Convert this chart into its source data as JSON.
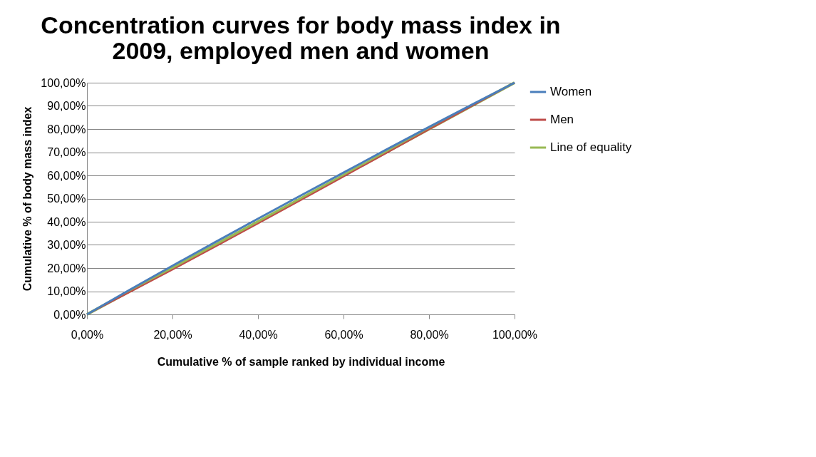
{
  "chart_data": {
    "type": "line",
    "title": [
      "Concentration curves for body mass index in",
      "2009, employed men and women"
    ],
    "xlabel": "Cumulative % of sample ranked by individual income",
    "ylabel": "Cumulative % of body mass index",
    "x": [
      0,
      10,
      20,
      30,
      40,
      50,
      60,
      70,
      80,
      90,
      100
    ],
    "series": [
      {
        "name": "Women",
        "color": "#4a7ebb",
        "values": [
          0,
          10.6,
          21.0,
          31.2,
          41.3,
          51.3,
          61.2,
          71.1,
          80.9,
          90.5,
          100
        ]
      },
      {
        "name": "Men",
        "color": "#be4b48",
        "values": [
          0,
          9.6,
          19.3,
          29.2,
          39.2,
          49.3,
          59.4,
          69.6,
          79.8,
          89.9,
          100
        ]
      },
      {
        "name": "Line of equality",
        "color": "#98b954",
        "values": [
          0,
          10,
          20,
          30,
          40,
          50,
          60,
          70,
          80,
          90,
          100
        ]
      }
    ],
    "xlim": [
      0,
      100
    ],
    "xticks": [
      {
        "value": 0,
        "label": "0,00%"
      },
      {
        "value": 20,
        "label": "20,00%"
      },
      {
        "value": 40,
        "label": "40,00%"
      },
      {
        "value": 60,
        "label": "60,00%"
      },
      {
        "value": 80,
        "label": "80,00%"
      },
      {
        "value": 100,
        "label": "100,00%"
      }
    ],
    "ylim": [
      0,
      100
    ],
    "yticks": [
      {
        "value": 0,
        "label": "0,00%"
      },
      {
        "value": 10,
        "label": "10,00%"
      },
      {
        "value": 20,
        "label": "20,00%"
      },
      {
        "value": 30,
        "label": "30,00%"
      },
      {
        "value": 40,
        "label": "40,00%"
      },
      {
        "value": 50,
        "label": "50,00%"
      },
      {
        "value": 60,
        "label": "60,00%"
      },
      {
        "value": 70,
        "label": "70,00%"
      },
      {
        "value": 80,
        "label": "80,00%"
      },
      {
        "value": 90,
        "label": "90,00%"
      },
      {
        "value": 100,
        "label": "100,00%"
      }
    ],
    "grid": "y",
    "legend": "right",
    "marker": "none",
    "line_style": "solid"
  }
}
